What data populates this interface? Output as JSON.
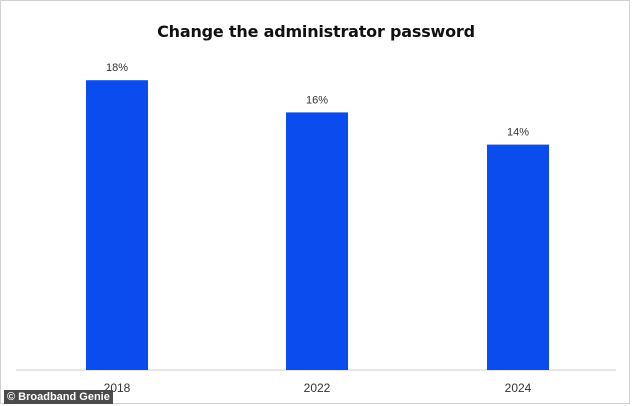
{
  "chart_data": {
    "type": "bar",
    "title": "Change the administrator password",
    "categories": [
      "2018",
      "2022",
      "2024"
    ],
    "values": [
      18,
      16,
      14
    ],
    "value_labels": [
      "18%",
      "16%",
      "14%"
    ],
    "xlabel": "",
    "ylabel": "",
    "ylim": [
      0,
      20
    ],
    "grid": false,
    "bar_color": "#0a4cee",
    "baseline_color": "#cccccc"
  },
  "watermark": "© Broadband Genie"
}
